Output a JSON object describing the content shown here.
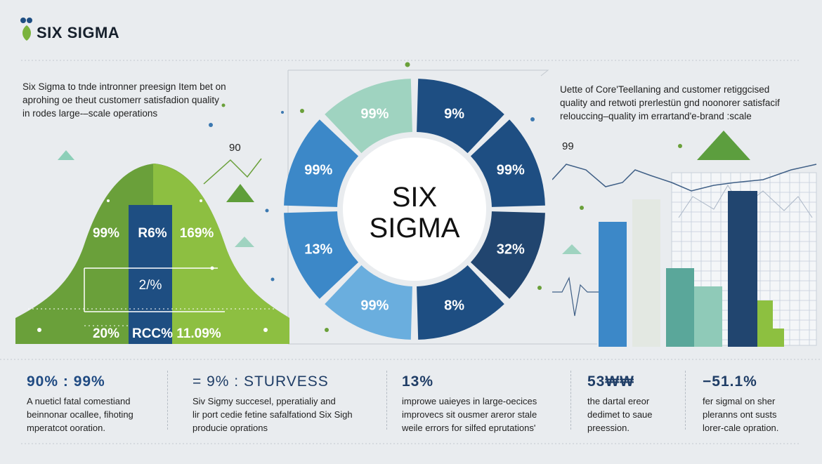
{
  "brand": {
    "logo_text": "SIX SIGMA"
  },
  "intro_left": {
    "lines": [
      "Six Sigma to tnde intronner preesign Item bet on",
      "aprohing oe theut customerr satisfadion quality",
      "in rodes large-–scale operations"
    ]
  },
  "intro_right": {
    "lines": [
      "Uette of Core'Teellaning and customer retiggcised",
      "quality and retwoti prerlestün gnd noonorer satisfacif",
      "relouccing–quality im errartand'e-brand :scale"
    ]
  },
  "labels": {
    "left_peak": "90",
    "right_peak": "99"
  },
  "bell": {
    "top_row": [
      "99%",
      "R6%",
      "169%"
    ],
    "middle": "2/%",
    "bottom_row": [
      "20%",
      "RCC%",
      "11.09%"
    ]
  },
  "wheel": {
    "center_line1": "SIX",
    "center_line2": "SIGMA",
    "segments": [
      "99%",
      "9%",
      "99%",
      "99%",
      "13%",
      "32%",
      "99%",
      "8%"
    ]
  },
  "stats": [
    {
      "heading": "90% : 99%",
      "lines": [
        "A nueticl fatal comestiand",
        "beinnonar ocallee, fihoting",
        "mperatcot ooration."
      ],
      "color": "#1f4a82"
    },
    {
      "heading": "= 9% : STURVESS",
      "lines": [
        "Siv Sigmy succesel, pperatialiy and",
        "lir port cedie fetine safalfationd  Six Sigh",
        "producie oprations"
      ],
      "color": "#1f3d66"
    },
    {
      "heading": "13%",
      "lines": [
        "improwe uaieyes in large-oecices",
        "improvecs  sit ousmer areror stale",
        "weile errors for silfed eprutations'"
      ],
      "color": "#1f3d66"
    },
    {
      "heading": "53₩₩",
      "lines": [
        "the dartal ereor",
        "dedimet to saue",
        "preession."
      ],
      "color": "#1f3d66"
    },
    {
      "heading": "−51.1%",
      "lines": [
        "fer sigmal on sher",
        "pleranns ont susts",
        "lorer-cale opration."
      ],
      "color": "#1f3d66"
    }
  ],
  "colors": {
    "green": "#6aa03a",
    "light_green": "#8dc040",
    "navy": "#1e4e82",
    "blue": "#3c88c8",
    "light_blue": "#6aaede",
    "teal": "#5aa79a",
    "mint": "#9fd3c0",
    "dark_navy": "#21456f"
  }
}
